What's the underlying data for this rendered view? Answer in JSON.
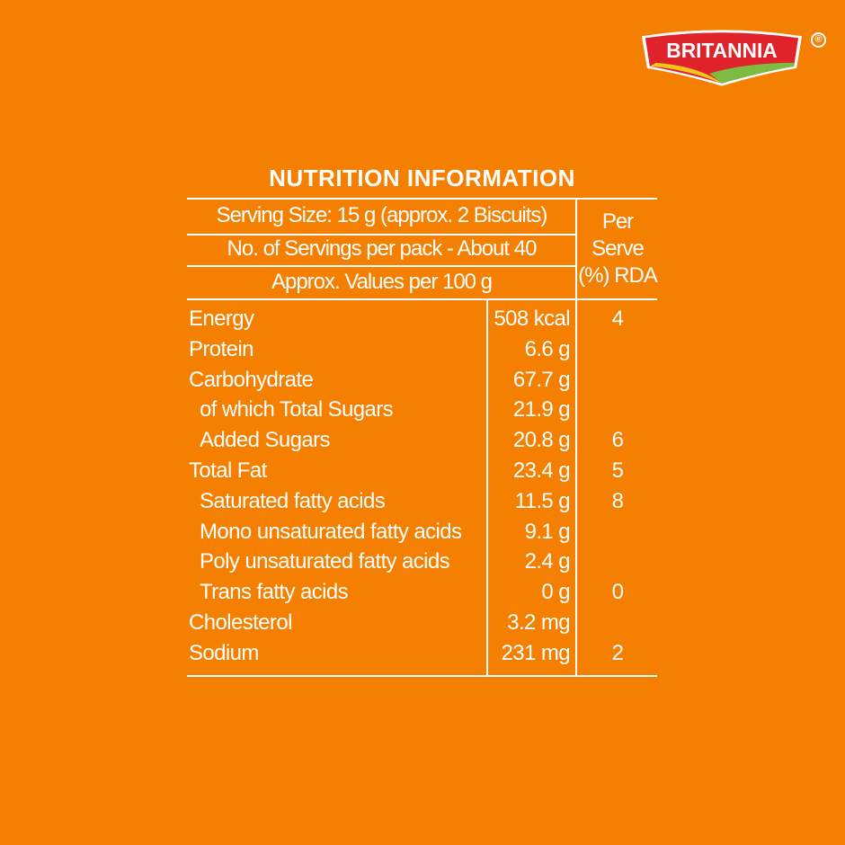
{
  "brand": {
    "logo_text": "BRITANNIA",
    "registered_mark": "®",
    "colors": {
      "red": "#E0222B",
      "yellow": "#F5C518",
      "green": "#7DBB42"
    }
  },
  "background_color": "#F57F00",
  "title": "NUTRITION INFORMATION",
  "header": {
    "serving_size": "Serving Size: 15 g (approx. 2 Biscuits)",
    "servings_per_pack": "No. of Servings per pack - About 40",
    "values_basis": "Approx. Values per 100 g",
    "rda_line1": "Per",
    "rda_line2": "Serve",
    "rda_line3": "(%) RDA"
  },
  "rows": [
    {
      "name": "Energy",
      "value": "508 kcal",
      "rda": "4",
      "indent": false
    },
    {
      "name": "Protein",
      "value": "6.6 g",
      "rda": "",
      "indent": false
    },
    {
      "name": "Carbohydrate",
      "value": "67.7 g",
      "rda": "",
      "indent": false
    },
    {
      "name": "of which Total Sugars",
      "value": "21.9 g",
      "rda": "",
      "indent": true
    },
    {
      "name": "Added Sugars",
      "value": "20.8 g",
      "rda": "6",
      "indent": true
    },
    {
      "name": "Total Fat",
      "value": "23.4 g",
      "rda": "5",
      "indent": false
    },
    {
      "name": "Saturated fatty acids",
      "value": "11.5 g",
      "rda": "8",
      "indent": true
    },
    {
      "name": "Mono unsaturated fatty acids",
      "value": "9.1 g",
      "rda": "",
      "indent": true
    },
    {
      "name": "Poly unsaturated fatty acids",
      "value": "2.4 g",
      "rda": "",
      "indent": true
    },
    {
      "name": "Trans fatty acids",
      "value": "0 g",
      "rda": "0",
      "indent": true
    },
    {
      "name": "Cholesterol",
      "value": "3.2 mg",
      "rda": "",
      "indent": false
    },
    {
      "name": "Sodium",
      "value": "231 mg",
      "rda": "2",
      "indent": false
    }
  ]
}
